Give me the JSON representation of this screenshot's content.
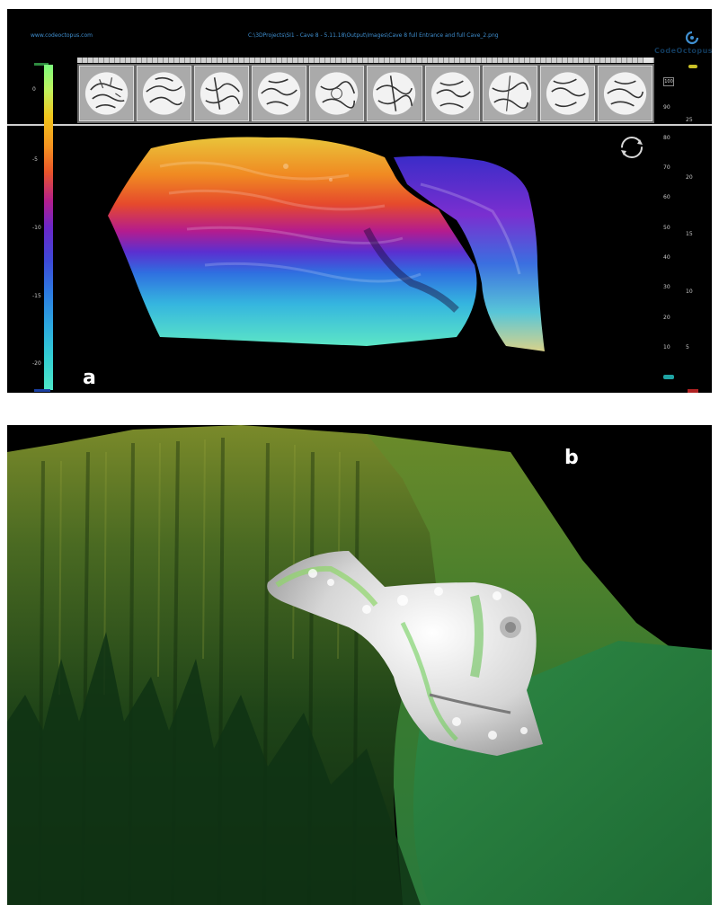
{
  "panel_a": {
    "label": "a",
    "website": "www.codeoctopus.com",
    "file_path": "C:\\3DProjects\\SI1 - Cave 8 - 5.11.18\\Output\\Images\\Cave 8 full Entrance and full Cave_2.png",
    "logo_text": "CodeOctopus",
    "left_scale_ticks": [
      "0",
      "-5",
      "-10",
      "-15",
      "-20"
    ],
    "right_scale_1_ticks": [
      "100",
      "90",
      "80",
      "70",
      "60",
      "50",
      "40",
      "30",
      "20",
      "10"
    ],
    "right_scale_2_ticks": [
      "25",
      "20",
      "15",
      "10",
      "5"
    ],
    "thumbnail_count": 10,
    "icons": [
      "logo-icon",
      "rotate-icon"
    ],
    "colorbar_colors": [
      "#7dfc7d",
      "#f2c51b",
      "#e9552a",
      "#b21e8e",
      "#3e48d8",
      "#2ca7e0",
      "#4fe7c8"
    ]
  },
  "panel_b": {
    "label": "b",
    "terrain_color": "#2f7a37",
    "cave_color": "#e8e8e8"
  }
}
